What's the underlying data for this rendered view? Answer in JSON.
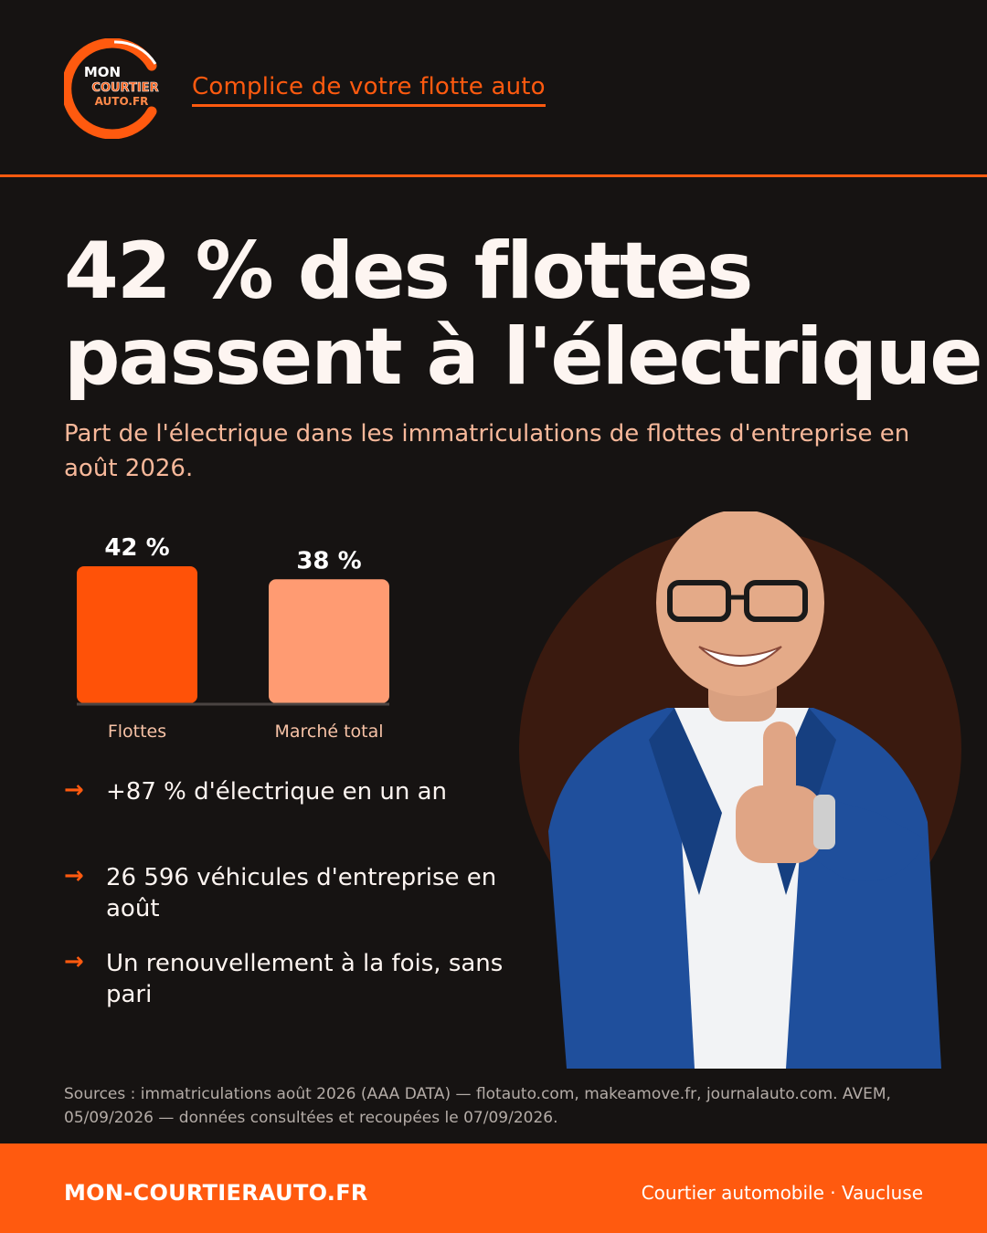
{
  "header": {
    "logo_text": [
      "MON",
      "COURTIER",
      "AUTO.FR"
    ],
    "tagline": "Complice de votre flotte auto"
  },
  "headline": {
    "line1": "42 % des flottes",
    "line2": "passent à l'électrique"
  },
  "subtitle": "Part de l'électrique dans les immatriculations de flottes d'entreprise en août 2026.",
  "chart_data": {
    "type": "bar",
    "categories": [
      "Flottes",
      "Marché total"
    ],
    "values": [
      42,
      38
    ],
    "value_labels": [
      "42 %",
      "38 %"
    ],
    "colors": [
      "#ff5208",
      "#ff9b72"
    ],
    "grid": false
  },
  "bullets": [
    {
      "icon": "arrow-right-icon",
      "text": "+87 % d'électrique en un an"
    },
    {
      "icon": "arrow-right-icon",
      "text": "26 596 véhicules d'entreprise en août"
    },
    {
      "icon": "arrow-right-icon",
      "text": "Un renouvellement à la fois, sans pari"
    }
  ],
  "photo": {
    "icon": "smiling-man-thumbs-up-photo"
  },
  "sources": "Sources : immatriculations août 2026 (AAA DATA) — flotauto.com, makeamove.fr, journalauto.com. AVEM, 05/09/2026 — données consultées et recoupées le 07/09/2026.",
  "footer": {
    "site": "MON-COURTIERAUTO.FR",
    "right": "Courtier automobile · Vaucluse"
  },
  "colors": {
    "accent": "#ff5a0f",
    "background": "#161312",
    "secondary_bar": "#ff9b72"
  }
}
